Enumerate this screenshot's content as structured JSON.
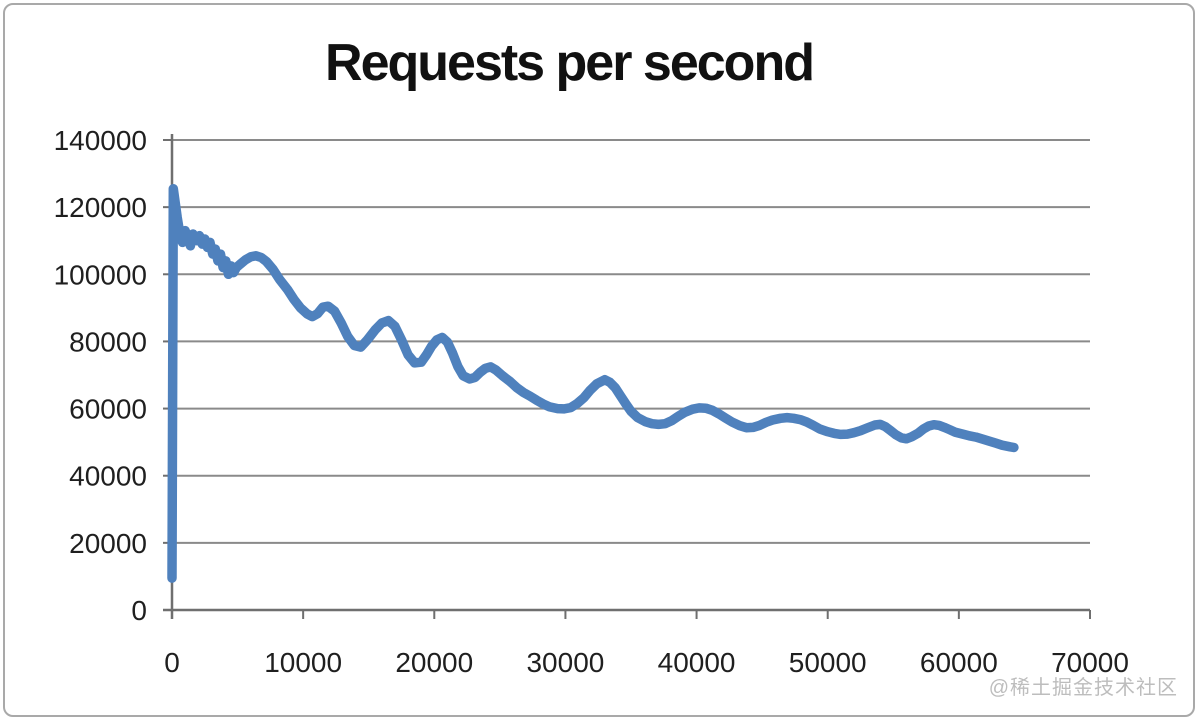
{
  "watermark": {
    "text": "@稀土掘金技术社区",
    "color": "#bdbdbd"
  },
  "chart_data": {
    "type": "line",
    "title": "Requests per second",
    "xlabel": "",
    "ylabel": "",
    "xlim": [
      0,
      70000
    ],
    "ylim": [
      0,
      140000
    ],
    "x_ticks": [
      0,
      10000,
      20000,
      30000,
      40000,
      50000,
      60000,
      70000
    ],
    "y_ticks": [
      0,
      20000,
      40000,
      60000,
      80000,
      100000,
      120000,
      140000
    ],
    "grid": "horizontal",
    "legend": "none",
    "style": {
      "background": "#ffffff",
      "border_color": "#a9a9a9",
      "grid_color": "#8a8a8a",
      "axis_color": "#6f6f6f",
      "tick_label_color": "#1f1f1f",
      "title_color": "#111111",
      "line_color": "#4f81bd",
      "line_width": 9.5
    },
    "series": [
      {
        "name": "Requests per second",
        "color": "#4f81bd",
        "points": [
          [
            0,
            9500
          ],
          [
            100,
            125500
          ],
          [
            400,
            117000
          ],
          [
            600,
            112000
          ],
          [
            800,
            109500
          ],
          [
            1000,
            113000
          ],
          [
            1200,
            111000
          ],
          [
            1400,
            108500
          ],
          [
            1600,
            112000
          ],
          [
            1900,
            110000
          ],
          [
            2100,
            111500
          ],
          [
            2300,
            109000
          ],
          [
            2500,
            110500
          ],
          [
            2700,
            108000
          ],
          [
            2900,
            109500
          ],
          [
            3100,
            106000
          ],
          [
            3300,
            107500
          ],
          [
            3500,
            104000
          ],
          [
            3700,
            106000
          ],
          [
            3900,
            102000
          ],
          [
            4100,
            104000
          ],
          [
            4300,
            100000
          ],
          [
            4500,
            102500
          ],
          [
            4700,
            100500
          ],
          [
            4900,
            102000
          ],
          [
            5200,
            103000
          ],
          [
            5600,
            104300
          ],
          [
            6000,
            105200
          ],
          [
            6400,
            105500
          ],
          [
            6800,
            105000
          ],
          [
            7200,
            103800
          ],
          [
            7700,
            101500
          ],
          [
            8200,
            98500
          ],
          [
            8800,
            95500
          ],
          [
            9300,
            92500
          ],
          [
            9800,
            90000
          ],
          [
            10300,
            88200
          ],
          [
            10700,
            87400
          ],
          [
            11100,
            88300
          ],
          [
            11500,
            90200
          ],
          [
            11900,
            90500
          ],
          [
            12400,
            89000
          ],
          [
            12900,
            85500
          ],
          [
            13400,
            81500
          ],
          [
            13900,
            78800
          ],
          [
            14400,
            78300
          ],
          [
            14900,
            80500
          ],
          [
            15500,
            83500
          ],
          [
            16000,
            85500
          ],
          [
            16500,
            86200
          ],
          [
            17000,
            84500
          ],
          [
            17500,
            80500
          ],
          [
            18000,
            76000
          ],
          [
            18500,
            73600
          ],
          [
            19000,
            73800
          ],
          [
            19400,
            76000
          ],
          [
            19800,
            78600
          ],
          [
            20200,
            80500
          ],
          [
            20600,
            81200
          ],
          [
            21000,
            79800
          ],
          [
            21400,
            76500
          ],
          [
            21800,
            72500
          ],
          [
            22200,
            69800
          ],
          [
            22700,
            68800
          ],
          [
            23100,
            69300
          ],
          [
            23500,
            70800
          ],
          [
            23900,
            72000
          ],
          [
            24300,
            72400
          ],
          [
            24700,
            71500
          ],
          [
            25200,
            69800
          ],
          [
            25800,
            68000
          ],
          [
            26300,
            66200
          ],
          [
            26800,
            64800
          ],
          [
            27300,
            63700
          ],
          [
            27800,
            62500
          ],
          [
            28300,
            61400
          ],
          [
            28800,
            60500
          ],
          [
            29400,
            60000
          ],
          [
            29900,
            59900
          ],
          [
            30400,
            60300
          ],
          [
            30900,
            61500
          ],
          [
            31400,
            63200
          ],
          [
            31900,
            65500
          ],
          [
            32400,
            67400
          ],
          [
            33000,
            68600
          ],
          [
            33400,
            67800
          ],
          [
            33800,
            66200
          ],
          [
            34200,
            63800
          ],
          [
            34600,
            61400
          ],
          [
            35000,
            59200
          ],
          [
            35500,
            57300
          ],
          [
            36100,
            56100
          ],
          [
            36600,
            55500
          ],
          [
            37100,
            55300
          ],
          [
            37600,
            55500
          ],
          [
            38100,
            56400
          ],
          [
            38600,
            57700
          ],
          [
            39100,
            58900
          ],
          [
            39700,
            59800
          ],
          [
            40200,
            60200
          ],
          [
            40700,
            60100
          ],
          [
            41200,
            59500
          ],
          [
            41700,
            58400
          ],
          [
            42200,
            57200
          ],
          [
            42700,
            56000
          ],
          [
            43300,
            54900
          ],
          [
            43800,
            54300
          ],
          [
            44300,
            54400
          ],
          [
            44800,
            55000
          ],
          [
            45300,
            55900
          ],
          [
            45800,
            56600
          ],
          [
            46400,
            57100
          ],
          [
            46900,
            57300
          ],
          [
            47400,
            57100
          ],
          [
            47900,
            56700
          ],
          [
            48400,
            56000
          ],
          [
            48900,
            55000
          ],
          [
            49400,
            53900
          ],
          [
            50000,
            53100
          ],
          [
            50500,
            52600
          ],
          [
            51000,
            52300
          ],
          [
            51500,
            52400
          ],
          [
            52000,
            52800
          ],
          [
            52500,
            53400
          ],
          [
            53000,
            54200
          ],
          [
            53600,
            55100
          ],
          [
            54000,
            55300
          ],
          [
            54400,
            54600
          ],
          [
            54800,
            53400
          ],
          [
            55200,
            52200
          ],
          [
            55600,
            51300
          ],
          [
            56000,
            51000
          ],
          [
            56400,
            51600
          ],
          [
            56900,
            52700
          ],
          [
            57300,
            53900
          ],
          [
            57700,
            54800
          ],
          [
            58100,
            55200
          ],
          [
            58500,
            55000
          ],
          [
            58900,
            54400
          ],
          [
            59300,
            53700
          ],
          [
            59700,
            53000
          ],
          [
            60300,
            52400
          ],
          [
            60800,
            51900
          ],
          [
            61300,
            51500
          ],
          [
            61800,
            50900
          ],
          [
            62300,
            50300
          ],
          [
            62800,
            49700
          ],
          [
            63300,
            49100
          ],
          [
            63900,
            48600
          ],
          [
            64200,
            48400
          ]
        ]
      }
    ]
  }
}
